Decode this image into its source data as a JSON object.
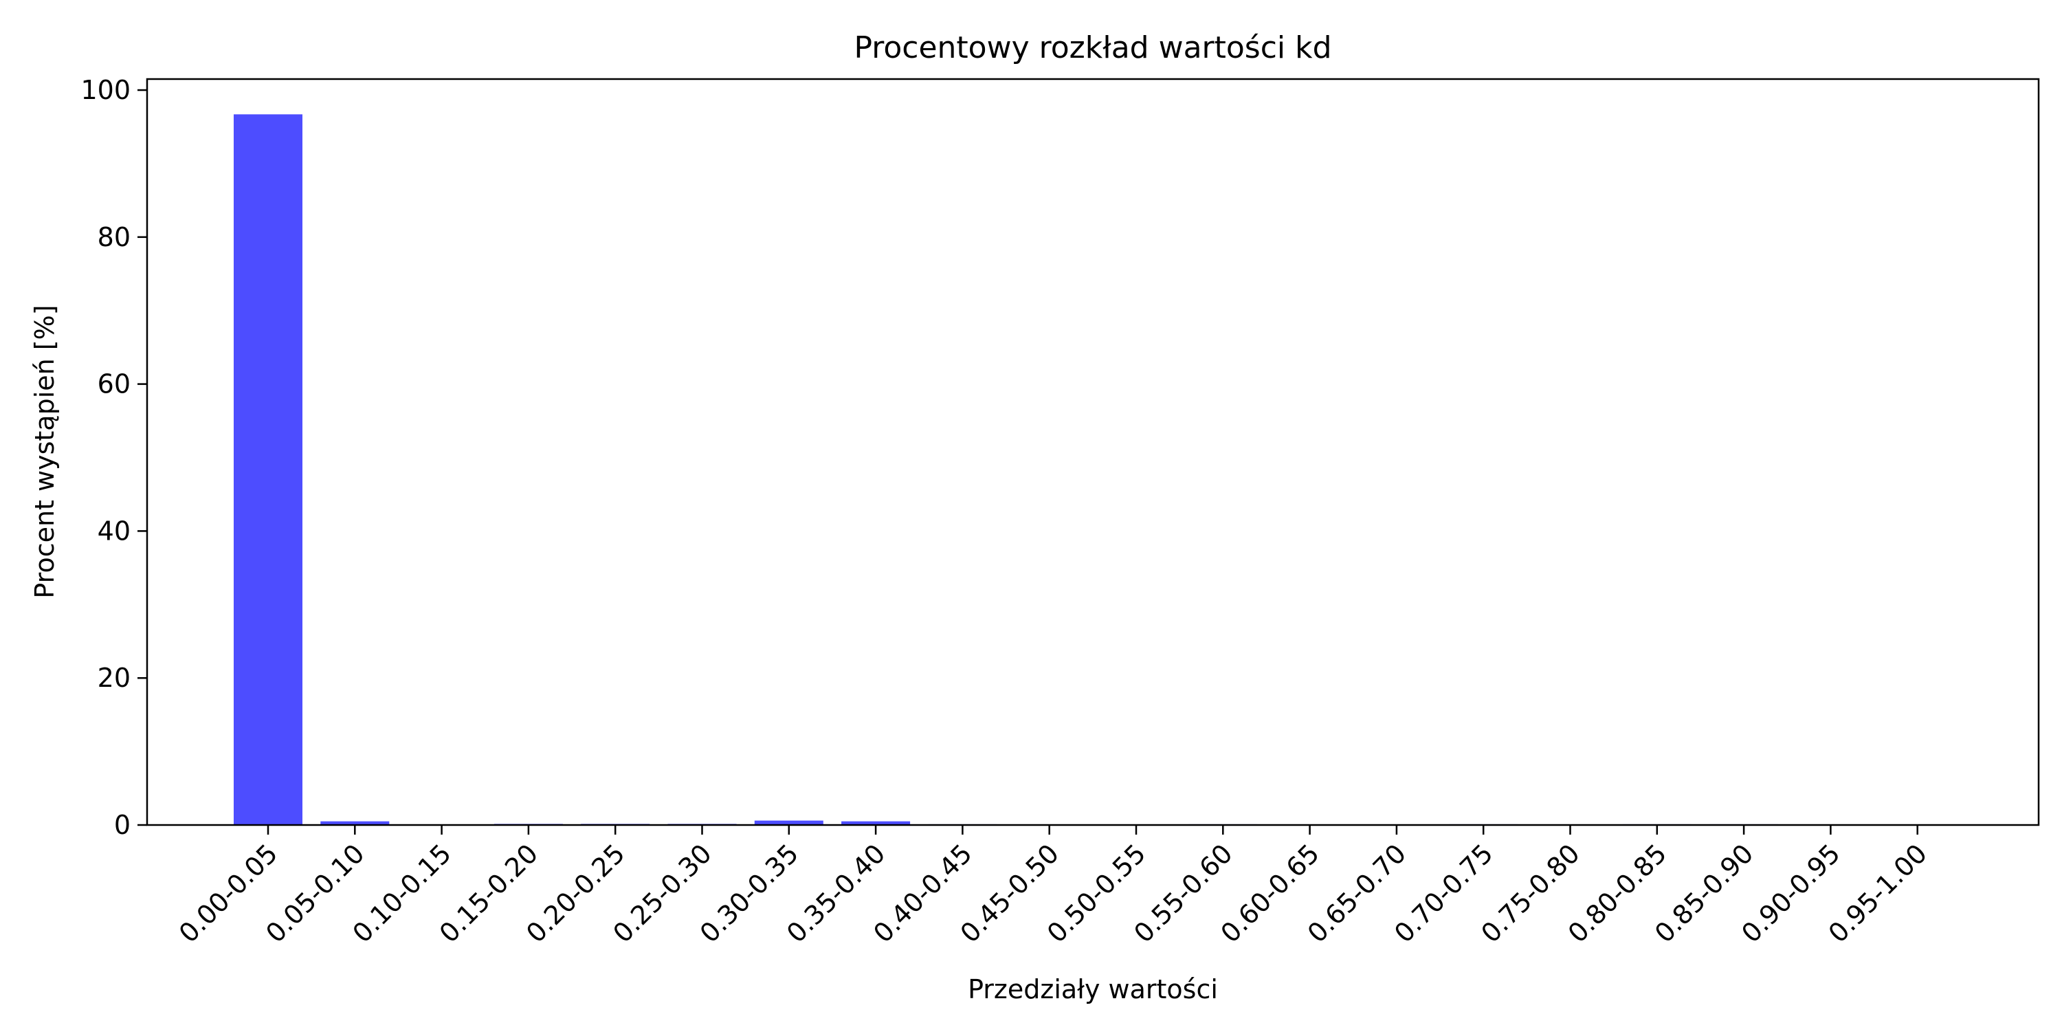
{
  "chart_data": {
    "type": "bar",
    "title": "Procentowy rozkład wartości kd",
    "xlabel": "Przedziały wartości",
    "ylabel": "Procent wystąpień [%]",
    "ylim": [
      0,
      101.5
    ],
    "yticks": [
      0,
      20,
      40,
      60,
      80,
      100
    ],
    "grid": false,
    "bar_color": "#4d4dff",
    "categories": [
      "0.00-0.05",
      "0.05-0.10",
      "0.10-0.15",
      "0.15-0.20",
      "0.20-0.25",
      "0.25-0.30",
      "0.30-0.35",
      "0.35-0.40",
      "0.40-0.45",
      "0.45-0.50",
      "0.50-0.55",
      "0.55-0.60",
      "0.60-0.65",
      "0.65-0.70",
      "0.70-0.75",
      "0.75-0.80",
      "0.80-0.85",
      "0.85-0.90",
      "0.90-0.95",
      "0.95-1.00"
    ],
    "values": [
      96.7,
      0.5,
      0.05,
      0.15,
      0.15,
      0.15,
      0.6,
      0.5,
      0.1,
      0.05,
      0.05,
      0.1,
      0.05,
      0.05,
      0.1,
      0.05,
      0.1,
      0.1,
      0.05,
      0.05
    ]
  }
}
